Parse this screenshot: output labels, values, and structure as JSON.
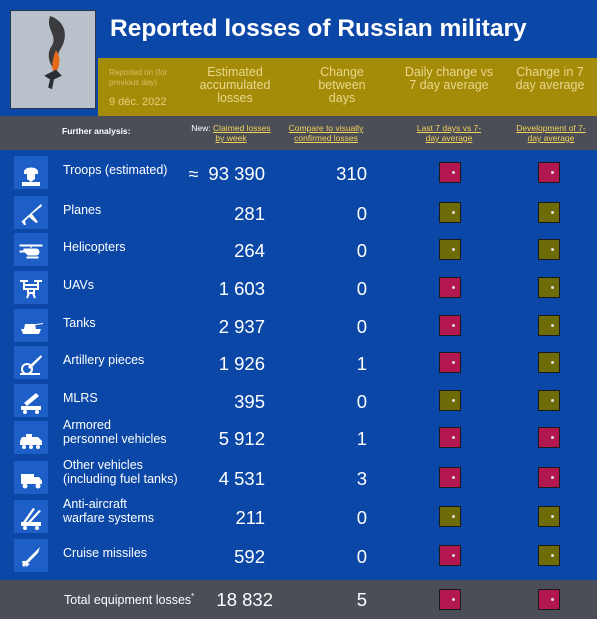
{
  "header": {
    "title": "Reported losses of Russian military",
    "reported_note": "Reported on (for previous day)",
    "reported_date": "9 déc. 2022",
    "col_total": "Estimated accumulated losses",
    "col_change": "Change between days",
    "col_daily_vs_avg": "Daily change vs 7 day average",
    "col_change_avg": "Change in 7 day average"
  },
  "analysis": {
    "label": "Further analysis:",
    "new_prefix": "New:",
    "claimed_by_week": "Claimed losses by week",
    "compare_visual": "Compare to visually confirmed losses",
    "last7_vs_avg": "Last 7 days vs 7-day average",
    "development_avg": "Development of 7-day average"
  },
  "rows": [
    {
      "label": "Troops (estimated)",
      "approx": "≈",
      "total": "93 390",
      "change": "310",
      "daily": "red",
      "avg": "red",
      "icon": "soldier-icon"
    },
    {
      "label": "Planes",
      "approx": "",
      "total": "281",
      "change": "0",
      "daily": "olive",
      "avg": "olive",
      "icon": "plane-icon"
    },
    {
      "label": "Helicopters",
      "approx": "",
      "total": "264",
      "change": "0",
      "daily": "olive",
      "avg": "olive",
      "icon": "helicopter-icon"
    },
    {
      "label": "UAVs",
      "approx": "",
      "total": "1 603",
      "change": "0",
      "daily": "red",
      "avg": "olive",
      "icon": "drone-icon"
    },
    {
      "label": "Tanks",
      "approx": "",
      "total": "2 937",
      "change": "0",
      "daily": "red",
      "avg": "olive",
      "icon": "tank-icon"
    },
    {
      "label": "Artillery pieces",
      "approx": "",
      "total": "1 926",
      "change": "1",
      "daily": "red",
      "avg": "olive",
      "icon": "artillery-icon"
    },
    {
      "label": "MLRS",
      "approx": "",
      "total": "395",
      "change": "0",
      "daily": "olive",
      "avg": "olive",
      "icon": "mlrs-icon"
    },
    {
      "label": "Armored\npersonnel vehicles",
      "approx": "",
      "total": "5 912",
      "change": "1",
      "daily": "red",
      "avg": "red",
      "icon": "apc-icon"
    },
    {
      "label": "Other vehicles\n(including fuel tanks)",
      "approx": "",
      "total": "4 531",
      "change": "3",
      "daily": "red",
      "avg": "red",
      "icon": "truck-icon"
    },
    {
      "label": "Anti-aircraft\nwarfare systems",
      "approx": "",
      "total": "211",
      "change": "0",
      "daily": "olive",
      "avg": "olive",
      "icon": "anti-aircraft-icon"
    },
    {
      "label": "Cruise missiles",
      "approx": "",
      "total": "592",
      "change": "0",
      "daily": "red",
      "avg": "olive",
      "icon": "missile-icon"
    }
  ],
  "totals": {
    "label": "Total equipment losses",
    "marker": "*",
    "total": "18 832",
    "change": "5",
    "daily": "red",
    "avg": "red"
  },
  "colors": {
    "red": "#b3174f",
    "olive": "#6e6b09",
    "blue": "#0b47a6",
    "gold": "#a48b08"
  }
}
